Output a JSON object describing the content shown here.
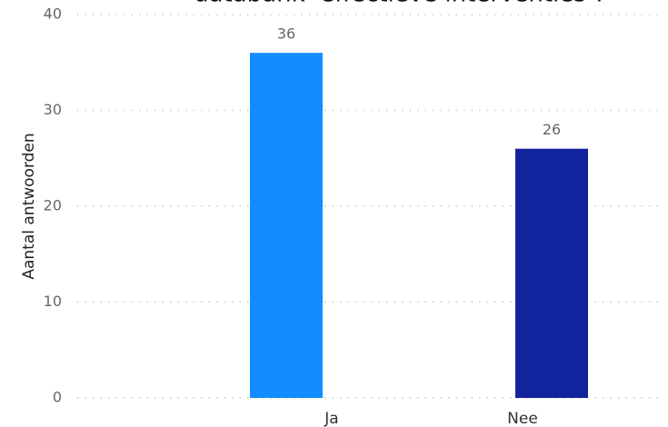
{
  "chart_data": {
    "type": "bar",
    "title": "databank ‘effectieve interventies’?",
    "y_label": "Aantal antwoorden",
    "categories": [
      "Ja",
      "Nee"
    ],
    "values": [
      36,
      26
    ],
    "colors": [
      "#118dff",
      "#12239e"
    ],
    "ylim": [
      0,
      40
    ],
    "yticks": [
      0,
      10,
      20,
      30,
      40
    ],
    "grid": true
  }
}
